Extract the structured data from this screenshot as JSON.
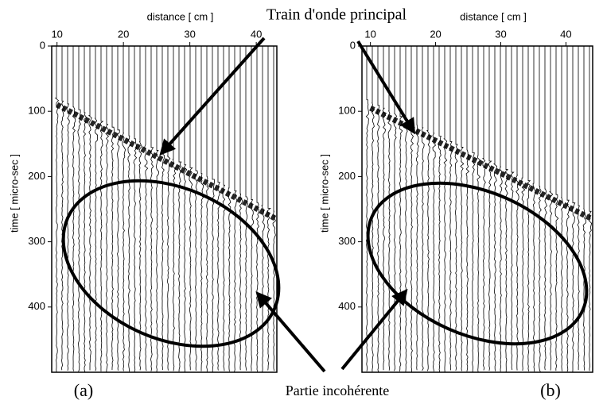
{
  "annotations": [
    "Train d'onde principal",
    "Partie incohérente"
  ],
  "chart_data": [
    {
      "type": "wiggle",
      "panel_label": "(a)",
      "xlabel": "distance [ cm ]",
      "ylabel": "time [ micro-sec ]",
      "xlim": [
        9.2,
        43.1
      ],
      "ylim": [
        0,
        500
      ],
      "xticks": [
        10,
        20,
        30,
        40
      ],
      "yticks": [
        0,
        100,
        200,
        300,
        400
      ],
      "x": [
        10,
        43
      ],
      "values": [
        90,
        265
      ],
      "color": "#000000"
    },
    {
      "type": "wiggle",
      "panel_label": "(b)",
      "xlabel": "distance [ cm ]",
      "ylabel": "time [ micro-sec ]",
      "xlim": [
        8.7,
        44.1
      ],
      "ylim": [
        0,
        500
      ],
      "xticks": [
        10,
        20,
        30,
        40
      ],
      "yticks": [
        0,
        100,
        200,
        300,
        400
      ],
      "x": [
        10,
        44
      ],
      "values": [
        95,
        265
      ],
      "color": "#000000"
    }
  ]
}
